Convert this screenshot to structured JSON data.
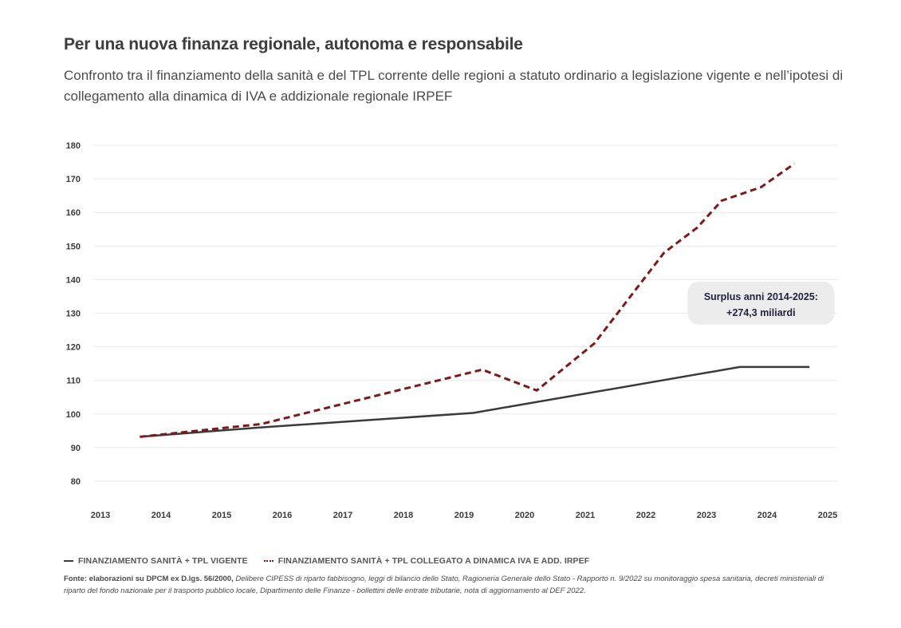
{
  "header": {
    "title": "Per una nuova finanza regionale, autonoma e responsabile",
    "subtitle": "Confronto tra il finanziamento della sanità e del TPL corrente delle regioni a statuto ordinario a legislazione vigente e nell’ipotesi di collegamento alla dinamica di IVA e addizionale regionale IRPEF"
  },
  "chart_data": {
    "type": "line",
    "title": "Per una nuova finanza regionale, autonoma e responsabile",
    "xlabel": "",
    "ylabel": "",
    "x_ticks": [
      "2013",
      "2014",
      "2015",
      "2016",
      "2017",
      "2018",
      "2019",
      "2020",
      "2021",
      "2022",
      "2023",
      "2024",
      "2025"
    ],
    "y_ticks": [
      80,
      90,
      100,
      110,
      120,
      130,
      140,
      150,
      160,
      170,
      180
    ],
    "xlim": [
      2013,
      2025
    ],
    "ylim": [
      80,
      180
    ],
    "grid": true,
    "legend_position": "bottom-left",
    "series": [
      {
        "name": "FINANZIAMENTO SANITÀ + TPL VIGENTE",
        "style": "solid",
        "color": "#3a3a3a",
        "x": [
          2013.65,
          2015.65,
          2019.15,
          2023.55,
          2024.7
        ],
        "y": [
          93.2,
          96.0,
          100.3,
          114.0,
          114.0
        ]
      },
      {
        "name": "FINANZIAMENTO SANITÀ + TPL COLLEGATO A DINAMICA IVA E ADD. IRPEF",
        "style": "dashed",
        "color": "#7a1a1a",
        "x": [
          2013.65,
          2015.65,
          2019.3,
          2020.2,
          2021.15,
          2022.3,
          2022.85,
          2023.25,
          2023.9,
          2024.45
        ],
        "y": [
          93.2,
          97.0,
          113.2,
          107.0,
          121.0,
          148.0,
          155.5,
          163.5,
          167.5,
          174.5
        ]
      }
    ],
    "annotations": [
      {
        "text_line1": "Surplus anni 2014-2025:",
        "text_line2": "+274,3 miliardi",
        "x": 2023.9,
        "y": 133
      }
    ]
  },
  "legend": {
    "items": [
      {
        "label": "FINANZIAMENTO SANITÀ + TPL VIGENTE"
      },
      {
        "label": "FINANZIAMENTO SANITÀ + TPL COLLEGATO A DINAMICA IVA E ADD. IRPEF"
      }
    ]
  },
  "source": {
    "lead": "Fonte: elaborazioni su DPCM ex D.lgs. 56/2000,",
    "rest": "Delibere CIPESS di riparto fabbisogno, leggi di bilancio dello Stato, Ragioneria Generale dello Stato - Rapporto n. 9/2022 su monitoraggio spesa sanitaria, decreti ministeriali di riparto del fondo nazionale per il trasporto pubblico locale, Dipartimento delle Finanze - bollettini delle entrate tributarie, nota di aggiornamento al DEF 2022."
  }
}
